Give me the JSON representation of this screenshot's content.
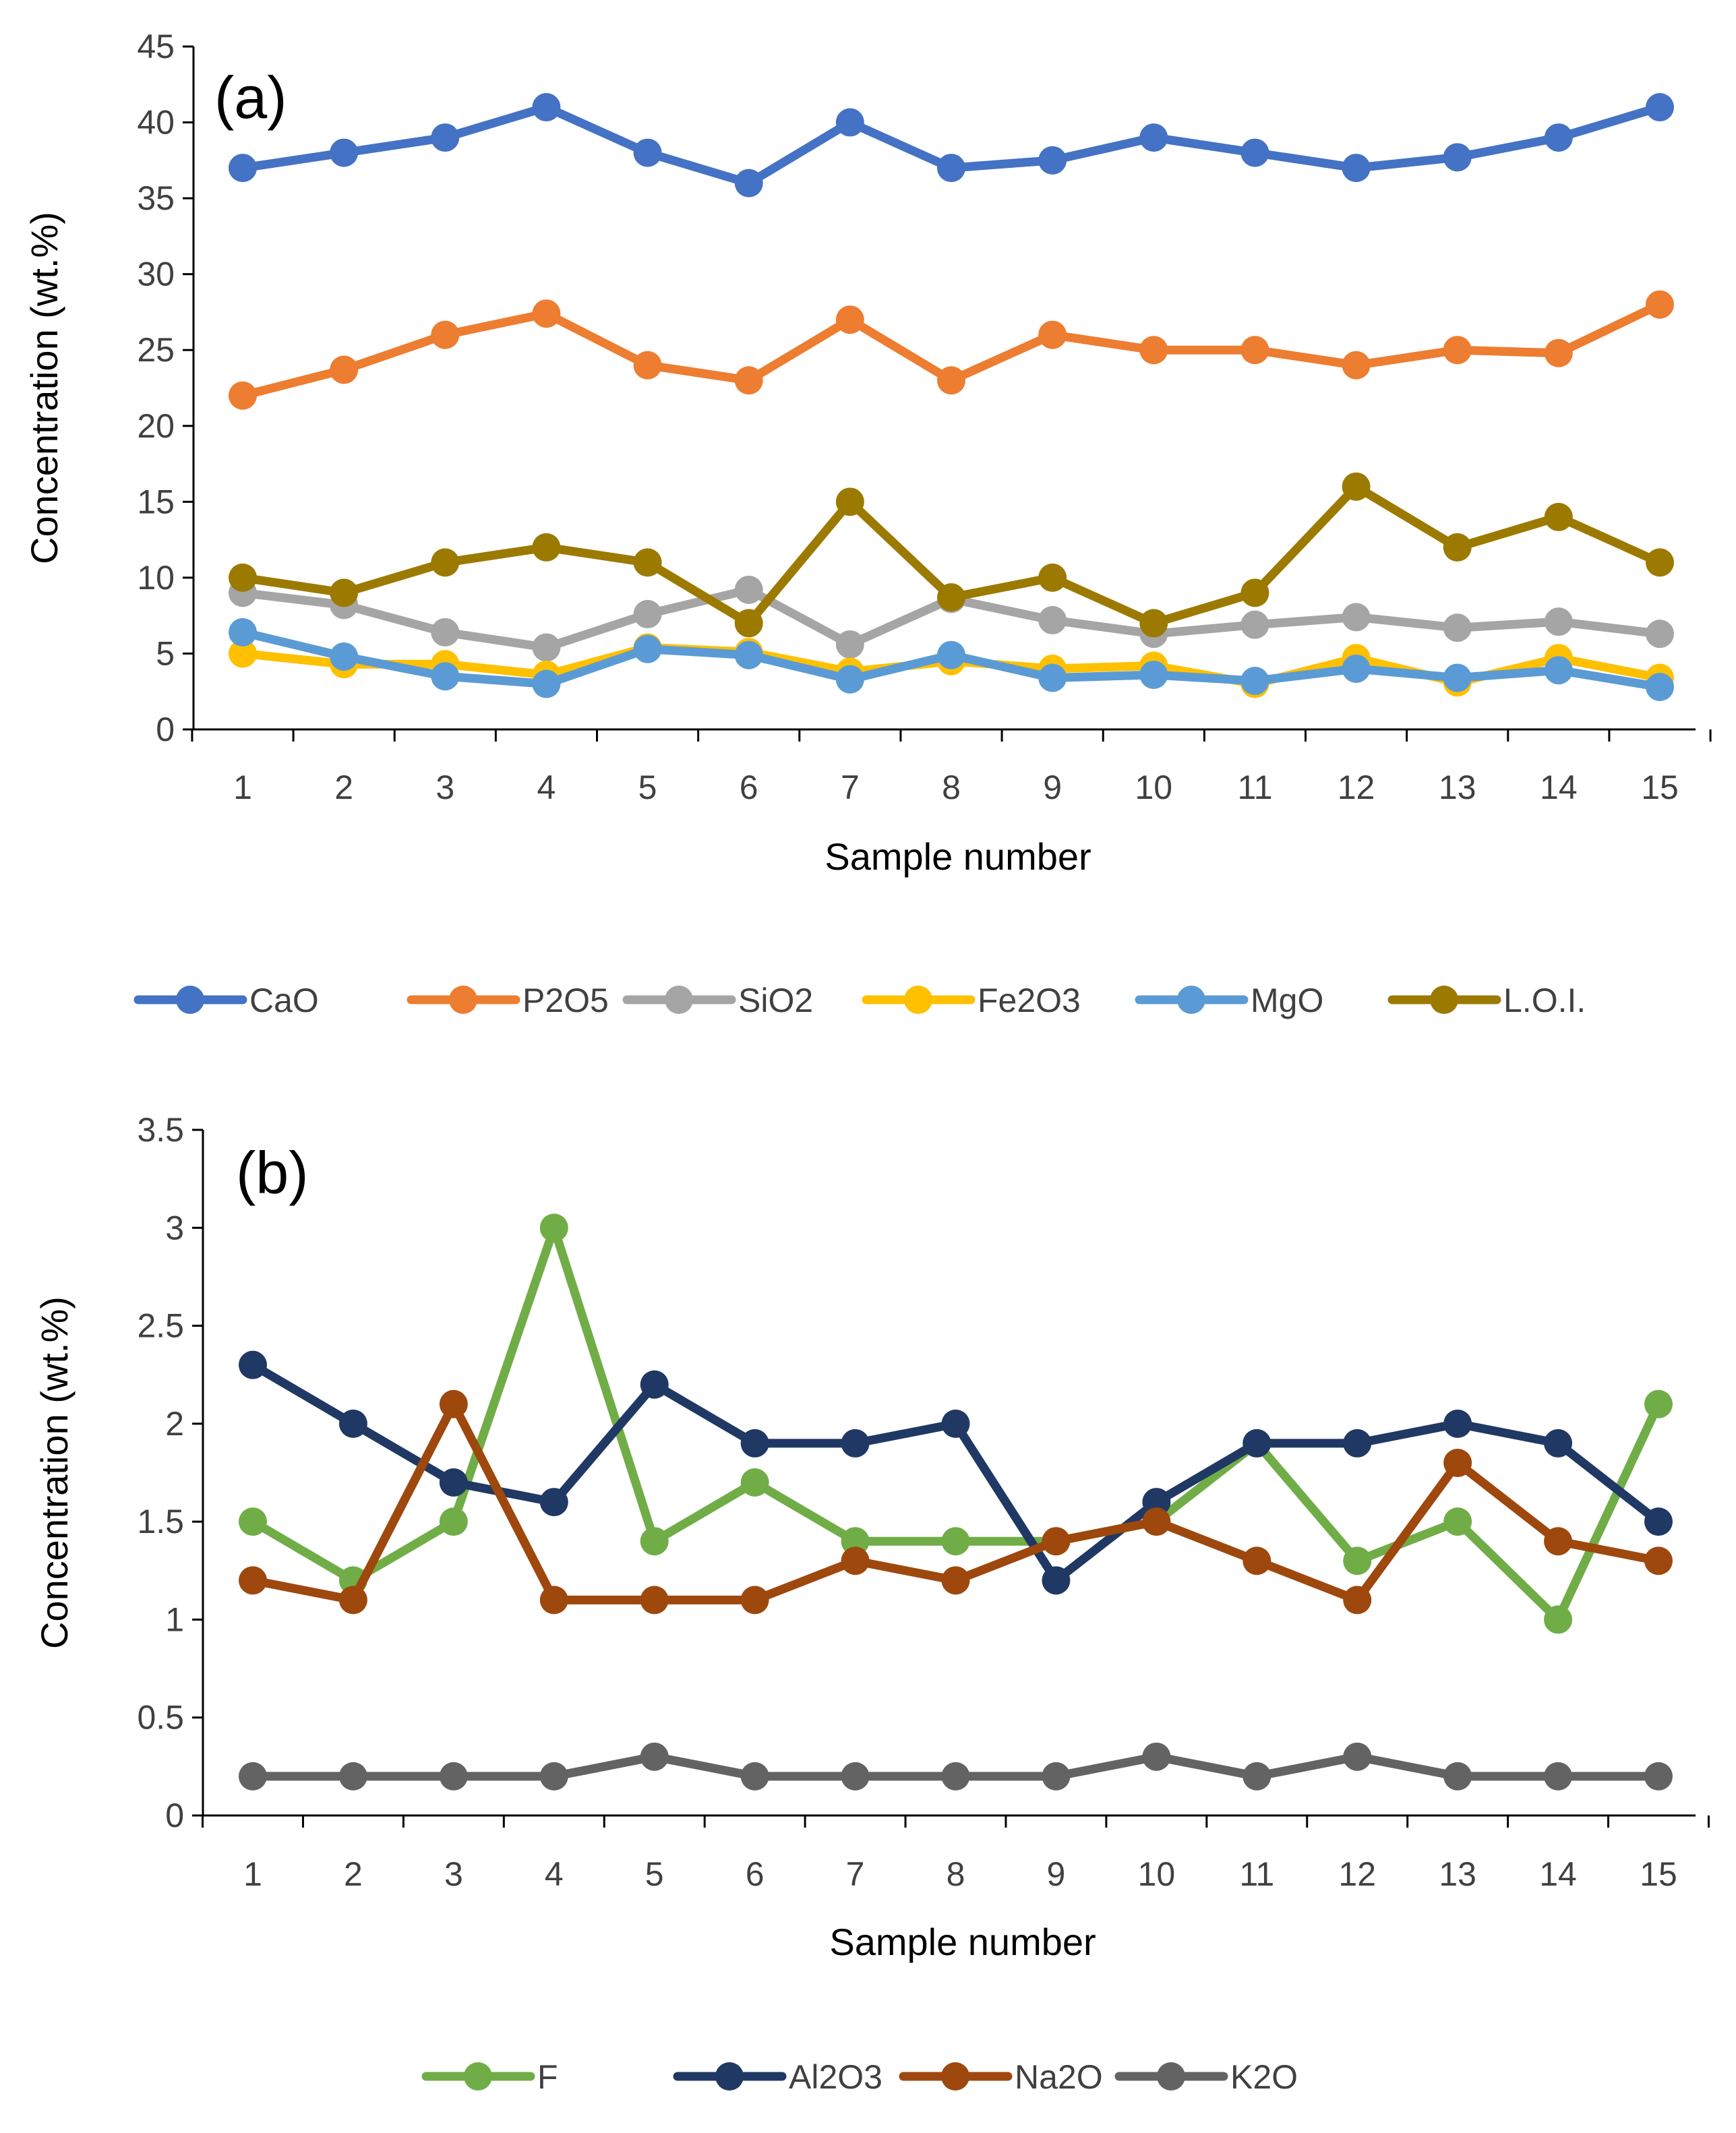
{
  "chart_data": [
    {
      "type": "line",
      "panel_label": "(a)",
      "xlabel": "Sample number",
      "ylabel": "Concentration (wt.%)",
      "categories": [
        "1",
        "2",
        "3",
        "4",
        "5",
        "6",
        "7",
        "8",
        "9",
        "10",
        "11",
        "12",
        "13",
        "14",
        "15"
      ],
      "ylim": [
        0,
        45
      ],
      "yticks": [
        "0",
        "5",
        "10",
        "15",
        "20",
        "25",
        "30",
        "35",
        "40",
        "45"
      ],
      "ytick_values": [
        0,
        5,
        10,
        15,
        20,
        25,
        30,
        35,
        40,
        45
      ],
      "legend_position": "bottom",
      "series": [
        {
          "name": "CaO",
          "color": "#4472C4",
          "values": [
            37,
            38,
            39,
            41,
            38,
            36,
            40,
            37,
            37.5,
            39,
            38,
            37,
            37.7,
            39,
            41
          ]
        },
        {
          "name": "P2O5",
          "color": "#ED7D31",
          "values": [
            22,
            23.7,
            26,
            27.4,
            24,
            23,
            27,
            23,
            26,
            25,
            25,
            24,
            25,
            24.8,
            28
          ]
        },
        {
          "name": "SiO2",
          "color": "#A5A5A5",
          "values": [
            9,
            8.2,
            6.4,
            5.4,
            7.6,
            9.2,
            5.6,
            8.6,
            7.2,
            6.3,
            6.9,
            7.4,
            6.7,
            7.1,
            6.3
          ]
        },
        {
          "name": "Fe2O3",
          "color": "#FFC000",
          "values": [
            5,
            4.3,
            4.3,
            3.6,
            5.4,
            5.1,
            3.8,
            4.5,
            4,
            4.2,
            3,
            4.7,
            3.1,
            4.7,
            3.4
          ]
        },
        {
          "name": "MgO",
          "color": "#5B9BD5",
          "values": [
            6.4,
            4.8,
            3.5,
            3,
            5.3,
            4.9,
            3.3,
            4.9,
            3.4,
            3.6,
            3.2,
            4,
            3.4,
            3.9,
            2.8
          ]
        },
        {
          "name": "L.O.I.",
          "color": "#9C7A00",
          "values": [
            10,
            9,
            11,
            12,
            11,
            7,
            15,
            8.7,
            10,
            7,
            9,
            16,
            12,
            14,
            11
          ]
        }
      ]
    },
    {
      "type": "line",
      "panel_label": "(b)",
      "xlabel": "Sample number",
      "ylabel": "Concentration (wt.%)",
      "categories": [
        "1",
        "2",
        "3",
        "4",
        "5",
        "6",
        "7",
        "8",
        "9",
        "10",
        "11",
        "12",
        "13",
        "14",
        "15"
      ],
      "ylim": [
        0,
        3.5
      ],
      "yticks": [
        "0",
        "0.5",
        "1",
        "1.5",
        "2",
        "2.5",
        "3",
        "3.5"
      ],
      "ytick_values": [
        0,
        0.5,
        1,
        1.5,
        2,
        2.5,
        3,
        3.5
      ],
      "legend_position": "bottom",
      "series": [
        {
          "name": "F",
          "color": "#70AD47",
          "values": [
            1.5,
            1.2,
            1.5,
            3,
            1.4,
            1.7,
            1.4,
            1.4,
            1.4,
            1.5,
            1.9,
            1.3,
            1.5,
            1,
            2.1
          ]
        },
        {
          "name": "Al2O3",
          "color": "#203864",
          "values": [
            2.3,
            2,
            1.7,
            1.6,
            2.2,
            1.9,
            1.9,
            2,
            1.2,
            1.6,
            1.9,
            1.9,
            2,
            1.9,
            1.5
          ]
        },
        {
          "name": "Na2O",
          "color": "#9E480E",
          "values": [
            1.2,
            1.1,
            2.1,
            1.1,
            1.1,
            1.1,
            1.3,
            1.2,
            1.4,
            1.5,
            1.3,
            1.1,
            1.8,
            1.4,
            1.3
          ]
        },
        {
          "name": "K2O",
          "color": "#636363",
          "values": [
            0.2,
            0.2,
            0.2,
            0.2,
            0.3,
            0.2,
            0.2,
            0.2,
            0.2,
            0.3,
            0.2,
            0.3,
            0.2,
            0.2,
            0.2
          ]
        }
      ]
    }
  ]
}
